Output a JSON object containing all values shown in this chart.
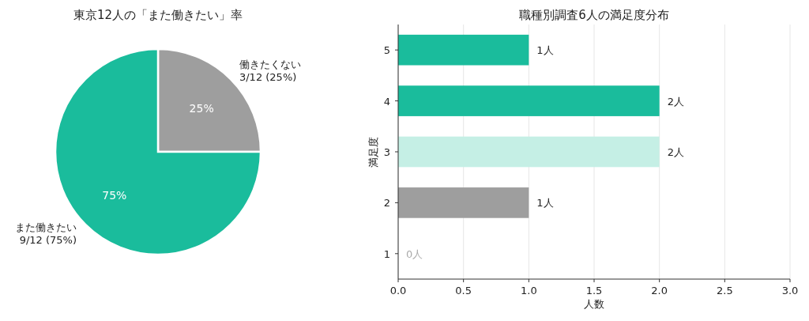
{
  "chart_data": [
    {
      "type": "pie",
      "title": "東京12人の「また働きたい」率",
      "categories": [
        "働きたくない\n3/12 (25%)",
        "また働きたい\n9/12 (75%)"
      ],
      "values": [
        25,
        75
      ],
      "colors": [
        "#9e9e9e",
        "#1abc9c"
      ],
      "value_labels": [
        "25%",
        "75%"
      ]
    },
    {
      "type": "bar",
      "orientation": "horizontal",
      "title": "職種別調査6人の満足度分布",
      "xlabel": "人数",
      "ylabel": "満足度",
      "categories": [
        "5",
        "4",
        "3",
        "2",
        "1"
      ],
      "values": [
        1,
        2,
        2,
        1,
        0
      ],
      "colors": [
        "#1abc9c",
        "#1abc9c",
        "#c5efe5",
        "#9e9e9e",
        "#1abc9c"
      ],
      "value_labels": [
        "1人",
        "2人",
        "2人",
        "1人",
        "0人"
      ],
      "xlim": [
        0,
        3
      ],
      "xticks": [
        {
          "value": 0,
          "label": "0.0"
        },
        {
          "value": 0.5,
          "label": "0.5"
        },
        {
          "value": 1,
          "label": "1.0"
        },
        {
          "value": 1.5,
          "label": "1.5"
        },
        {
          "value": 2,
          "label": "2.0"
        },
        {
          "value": 2.5,
          "label": "2.5"
        },
        {
          "value": 3,
          "label": "3.0"
        }
      ],
      "grid": "x"
    }
  ]
}
